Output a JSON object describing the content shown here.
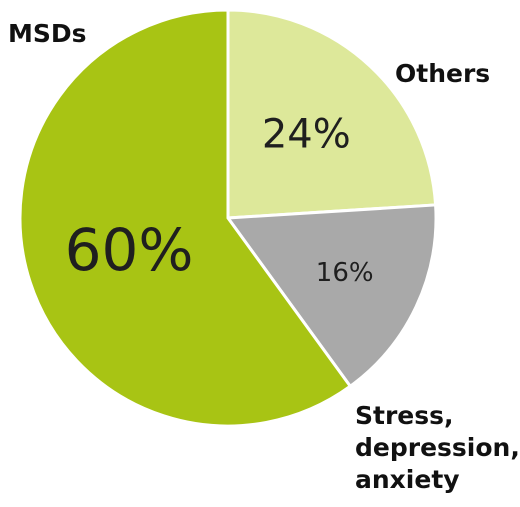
{
  "chart_data": {
    "type": "pie",
    "start_angle_deg": 0,
    "direction": "clockwise",
    "slices": [
      {
        "label": "Others",
        "value": 24,
        "display": "24%",
        "color": "#dde89a"
      },
      {
        "label": "Stress, depression, anxiety",
        "value": 16,
        "display": "16%",
        "color": "#a9a9a9"
      },
      {
        "label": "MSDs",
        "value": 60,
        "display": "60%",
        "color": "#a8c414"
      }
    ],
    "title": "",
    "legend": "outside-labels"
  },
  "labels": {
    "msds": "MSDs",
    "others": "Others",
    "stress_lines": [
      "Stress,",
      "depression,",
      "anxiety"
    ]
  }
}
